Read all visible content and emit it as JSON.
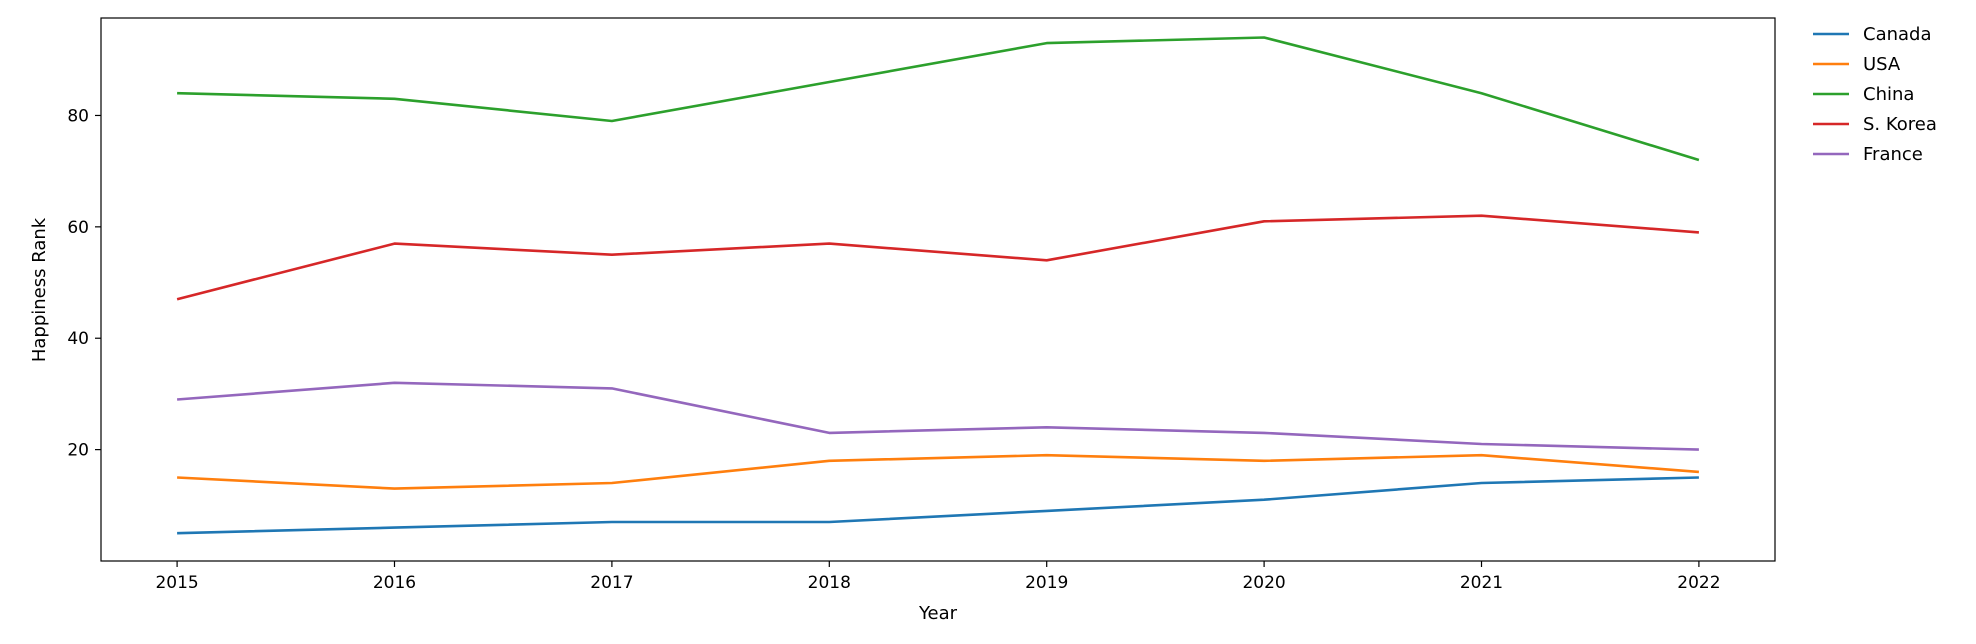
{
  "chart_data": {
    "type": "line",
    "title": "",
    "xlabel": "Year",
    "ylabel": "Happiness Rank",
    "x": [
      "2015",
      "2016",
      "2017",
      "2018",
      "2019",
      "2020",
      "2021",
      "2022"
    ],
    "xlim": [
      2014.65,
      2022.35
    ],
    "ylim": [
      0,
      97.5
    ],
    "yticks": [
      "20",
      "40",
      "60",
      "80"
    ],
    "grid": false,
    "legend_position": "outside-right",
    "series": [
      {
        "name": "Canada",
        "color": "#1f77b4",
        "values": [
          5,
          6,
          7,
          7,
          9,
          11,
          14,
          15
        ]
      },
      {
        "name": "USA",
        "color": "#ff7f0e",
        "values": [
          15,
          13,
          14,
          18,
          19,
          18,
          19,
          16
        ]
      },
      {
        "name": "China",
        "color": "#2ca02c",
        "values": [
          84,
          83,
          79,
          86,
          93,
          94,
          84,
          72
        ]
      },
      {
        "name": "S. Korea",
        "color": "#d62728",
        "values": [
          47,
          57,
          55,
          57,
          54,
          61,
          62,
          59
        ]
      },
      {
        "name": "France",
        "color": "#9467bd",
        "values": [
          29,
          32,
          31,
          23,
          24,
          23,
          21,
          20
        ]
      }
    ]
  }
}
